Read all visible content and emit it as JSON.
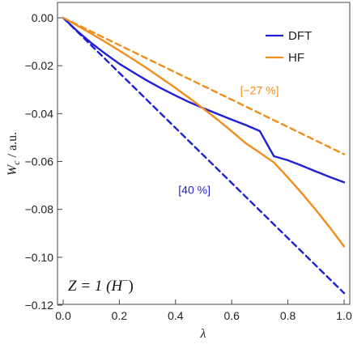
{
  "chart_data": {
    "type": "line",
    "xlabel": "λ",
    "ylabel": "W_c / a.u.",
    "ylabel_main": "W",
    "ylabel_sub": "c",
    "ylabel_tail": " / a.u.",
    "xlim": [
      0.0,
      1.0
    ],
    "ylim": [
      -0.12,
      0.0
    ],
    "x_ticks": [
      0.0,
      0.2,
      0.4,
      0.6,
      0.8,
      1.0
    ],
    "x_tick_labels": [
      "0.0",
      "0.2",
      "0.4",
      "0.6",
      "0.8",
      "1.0"
    ],
    "y_ticks": [
      0.0,
      -0.02,
      -0.04,
      -0.06,
      -0.08,
      -0.1,
      -0.12
    ],
    "y_tick_labels": [
      "0.00",
      "−0.02",
      "−0.04",
      "−0.06",
      "−0.08",
      "−0.10",
      "−0.12"
    ],
    "grid": false,
    "legend_position": "top-right",
    "legend": [
      {
        "name": "DFT",
        "color": "#1f1fd6"
      },
      {
        "name": "HF",
        "color": "#f28c1b"
      }
    ],
    "series": [
      {
        "name": "DFT",
        "style": "solid",
        "color": "#1f1fd6",
        "x": [
          0.0,
          0.05,
          0.1,
          0.15,
          0.2,
          0.25,
          0.3,
          0.35,
          0.4,
          0.45,
          0.5,
          0.55,
          0.6,
          0.65,
          0.7,
          0.75,
          0.8,
          0.85,
          0.9,
          0.95,
          1.0
        ],
        "y": [
          0.0,
          -0.0055,
          -0.0105,
          -0.015,
          -0.0192,
          -0.0228,
          -0.0263,
          -0.0295,
          -0.0325,
          -0.0353,
          -0.0378,
          -0.0402,
          -0.0425,
          -0.0448,
          -0.0473,
          -0.0578,
          -0.0595,
          -0.0618,
          -0.0642,
          -0.0665,
          -0.0687
        ]
      },
      {
        "name": "HF",
        "style": "solid",
        "color": "#f28c1b",
        "x": [
          0.0,
          0.05,
          0.1,
          0.15,
          0.2,
          0.25,
          0.3,
          0.35,
          0.4,
          0.45,
          0.5,
          0.55,
          0.6,
          0.65,
          0.7,
          0.75,
          0.8,
          0.85,
          0.9,
          0.95,
          1.0
        ],
        "y": [
          0.0,
          -0.0032,
          -0.0066,
          -0.0101,
          -0.0137,
          -0.0174,
          -0.0212,
          -0.0252,
          -0.0293,
          -0.0336,
          -0.038,
          -0.0426,
          -0.0474,
          -0.0524,
          -0.0563,
          -0.0604,
          -0.0667,
          -0.0733,
          -0.0803,
          -0.0877,
          -0.0955
        ]
      },
      {
        "name": "DFT dashed",
        "style": "dashed",
        "color": "#1f1fd6",
        "x": [
          0.0,
          1.0
        ],
        "y": [
          0.0,
          -0.115
        ]
      },
      {
        "name": "HF dashed",
        "style": "dashed",
        "color": "#f28c1b",
        "x": [
          0.0,
          1.0
        ],
        "y": [
          0.0,
          -0.057
        ]
      }
    ],
    "annotations": [
      {
        "text": "[40 %]",
        "x": 0.41,
        "y": -0.0735,
        "color": "#1f1fd6"
      },
      {
        "text": "[−27 %]",
        "x": 0.63,
        "y": -0.032,
        "color": "#f28c1b"
      }
    ],
    "label_box": {
      "text": "Z = 1 (H",
      "superscript": "−",
      "closing": ")"
    }
  }
}
